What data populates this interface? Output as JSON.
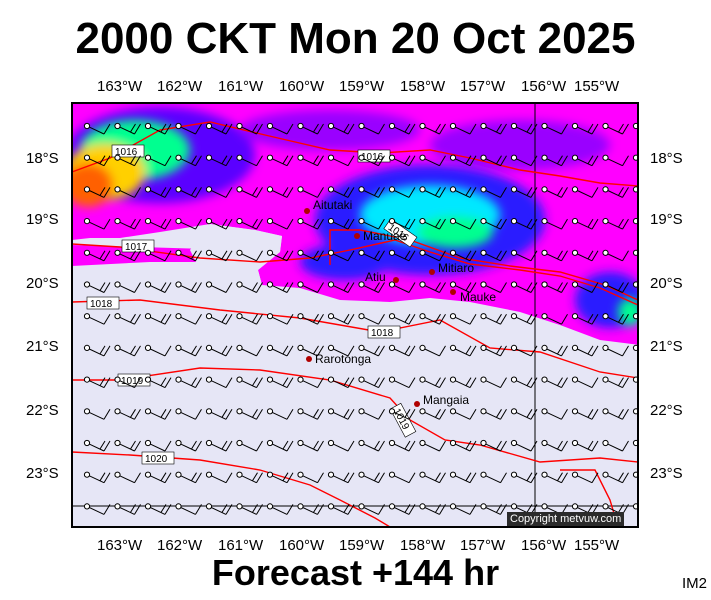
{
  "title": "2000 CKT Mon 20 Oct 2025",
  "footer": "Forecast +144 hr",
  "corner_code": "IM2",
  "copyright": "Copyright metvuw.com",
  "lon_labels": [
    "163°W",
    "162°W",
    "161°W",
    "160°W",
    "159°W",
    "158°W",
    "157°W",
    "156°W",
    "155°W"
  ],
  "lat_labels": [
    "18°S",
    "19°S",
    "20°S",
    "21°S",
    "22°S",
    "23°S"
  ],
  "places": [
    {
      "name": "Aitutaki"
    },
    {
      "name": "Manuae"
    },
    {
      "name": "Mitiaro"
    },
    {
      "name": "Atiu"
    },
    {
      "name": "Mauke"
    },
    {
      "name": "Rarotonga"
    },
    {
      "name": "Mangaia"
    }
  ],
  "isobar_labels": [
    "1016",
    "1016",
    "1016",
    "1017",
    "1018",
    "1018",
    "1019",
    "1019",
    "1020"
  ],
  "colors": {
    "ocean": "#e6e6f6",
    "isobar": "#ff0000",
    "rain_light": "#ff00ff",
    "rain_med": "#0000ff",
    "rain_heavy": "#00ffff"
  }
}
